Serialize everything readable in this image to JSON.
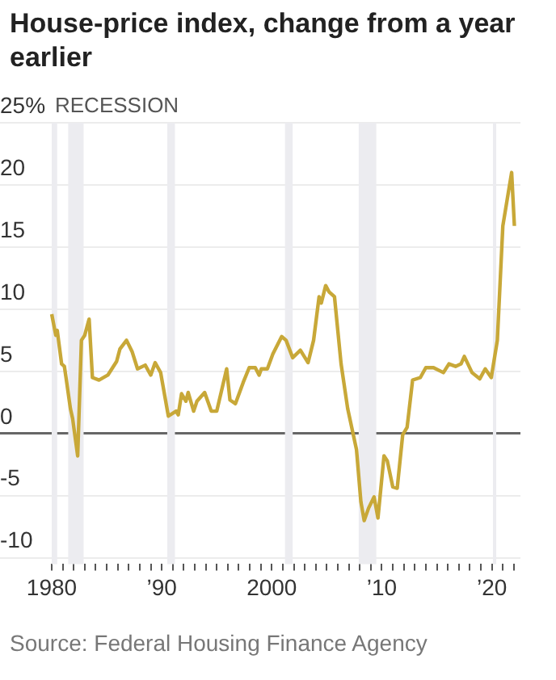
{
  "chart_data": {
    "type": "line",
    "title": "House-price index, change from a year earlier",
    "x": [
      1980.0,
      1980.37,
      1980.5,
      1980.9,
      1981.15,
      1981.3,
      1981.7,
      1981.9,
      1982.36,
      1982.7,
      1983.0,
      1983.4,
      1983.7,
      1984.3,
      1985.1,
      1985.9,
      1986.2,
      1986.8,
      1987.3,
      1987.8,
      1988.5,
      1989.0,
      1989.4,
      1989.9,
      1990.6,
      1991.3,
      1991.5,
      1991.8,
      1992.2,
      1992.4,
      1992.9,
      1993.2,
      1993.9,
      1994.5,
      1995.0,
      1995.9,
      1996.2,
      1996.7,
      1997.4,
      1997.95,
      1998.5,
      1998.85,
      1999.05,
      1999.6,
      2000.1,
      2000.9,
      2001.3,
      2001.9,
      2002.6,
      2003.3,
      2003.8,
      2004.3,
      2004.5,
      2004.9,
      2005.2,
      2005.7,
      2006.3,
      2006.9,
      2007.7,
      2008.1,
      2008.4,
      2008.8,
      2009.3,
      2009.65,
      2010.2,
      2010.5,
      2011.0,
      2011.4,
      2011.9,
      2012.3,
      2012.8,
      2013.5,
      2014.0,
      2014.7,
      2015.6,
      2016.1,
      2016.7,
      2017.2,
      2017.5,
      2018.2,
      2018.9,
      2019.4,
      2019.95,
      2020.5,
      2021.0,
      2021.8,
      2022.05
    ],
    "series": [
      {
        "color": "#c8a838",
        "values": [
          9.6,
          7.9,
          8.3,
          5.6,
          5.4,
          4.5,
          2.0,
          1.2,
          -1.8,
          7.5,
          7.9,
          9.2,
          4.5,
          4.3,
          4.7,
          5.8,
          6.8,
          7.5,
          6.6,
          5.2,
          5.5,
          4.7,
          5.7,
          4.9,
          1.4,
          1.8,
          1.5,
          3.2,
          2.6,
          3.3,
          1.8,
          2.6,
          3.3,
          1.8,
          1.8,
          5.2,
          2.7,
          2.4,
          4.1,
          5.3,
          5.3,
          4.7,
          5.2,
          5.2,
          6.4,
          7.8,
          7.5,
          6.1,
          6.7,
          5.7,
          7.5,
          11.0,
          10.5,
          11.9,
          11.4,
          11.0,
          5.6,
          2.0,
          -1.3,
          -5.5,
          -7.0,
          -6.0,
          -5.1,
          -6.8,
          -1.8,
          -2.2,
          -4.3,
          -4.4,
          -0.1,
          0.5,
          4.3,
          4.5,
          5.3,
          5.3,
          4.9,
          5.6,
          5.4,
          5.6,
          6.2,
          4.9,
          4.4,
          5.2,
          4.5,
          7.5,
          16.7,
          21.0,
          16.7
        ]
      }
    ],
    "xlim": [
      1975.3,
      2022.6
    ],
    "xticks": [
      {
        "value": 1980,
        "label": "1980"
      },
      {
        "value": 1981,
        "label": null
      },
      {
        "value": 1982,
        "label": null
      },
      {
        "value": 1983,
        "label": null
      },
      {
        "value": 1984,
        "label": null
      },
      {
        "value": 1985,
        "label": null
      },
      {
        "value": 1986,
        "label": null
      },
      {
        "value": 1987,
        "label": null
      },
      {
        "value": 1988,
        "label": null
      },
      {
        "value": 1989,
        "label": null
      },
      {
        "value": 1990,
        "label": "’90"
      },
      {
        "value": 1991,
        "label": null
      },
      {
        "value": 1992,
        "label": null
      },
      {
        "value": 1993,
        "label": null
      },
      {
        "value": 1994,
        "label": null
      },
      {
        "value": 1995,
        "label": null
      },
      {
        "value": 1996,
        "label": null
      },
      {
        "value": 1997,
        "label": null
      },
      {
        "value": 1998,
        "label": null
      },
      {
        "value": 1999,
        "label": null
      },
      {
        "value": 2000,
        "label": "2000"
      },
      {
        "value": 2001,
        "label": null
      },
      {
        "value": 2002,
        "label": null
      },
      {
        "value": 2003,
        "label": null
      },
      {
        "value": 2004,
        "label": null
      },
      {
        "value": 2005,
        "label": null
      },
      {
        "value": 2006,
        "label": null
      },
      {
        "value": 2007,
        "label": null
      },
      {
        "value": 2008,
        "label": null
      },
      {
        "value": 2009,
        "label": null
      },
      {
        "value": 2010,
        "label": "’10"
      },
      {
        "value": 2011,
        "label": null
      },
      {
        "value": 2012,
        "label": null
      },
      {
        "value": 2013,
        "label": null
      },
      {
        "value": 2014,
        "label": null
      },
      {
        "value": 2015,
        "label": null
      },
      {
        "value": 2016,
        "label": null
      },
      {
        "value": 2017,
        "label": null
      },
      {
        "value": 2018,
        "label": null
      },
      {
        "value": 2019,
        "label": null
      },
      {
        "value": 2020,
        "label": "’20"
      },
      {
        "value": 2021,
        "label": null
      },
      {
        "value": 2022,
        "label": null
      }
    ],
    "ylim": [
      -10.5,
      25
    ],
    "yticks": [
      -10,
      -5,
      0,
      5,
      10,
      15,
      20,
      {
        "value": 25,
        "label": "25%"
      }
    ],
    "grid": "y",
    "line_style": "solid",
    "bands": [
      {
        "axis": "x",
        "from": 1980.0,
        "to": 1980.5,
        "color": "#ececf0"
      },
      {
        "axis": "x",
        "from": 1981.5,
        "to": 1982.9,
        "color": "#ececf0"
      },
      {
        "axis": "x",
        "from": 1990.5,
        "to": 1991.2,
        "color": "#ececf0"
      },
      {
        "axis": "x",
        "from": 2001.2,
        "to": 2001.9,
        "color": "#ececf0"
      },
      {
        "axis": "x",
        "from": 2007.9,
        "to": 2009.5,
        "color": "#ececf0"
      },
      {
        "axis": "x",
        "from": 2020.1,
        "to": 2020.4,
        "color": "#ececf0"
      }
    ],
    "annotations": [
      "RECESSION",
      "Source: Federal Housing Finance Agency"
    ]
  }
}
